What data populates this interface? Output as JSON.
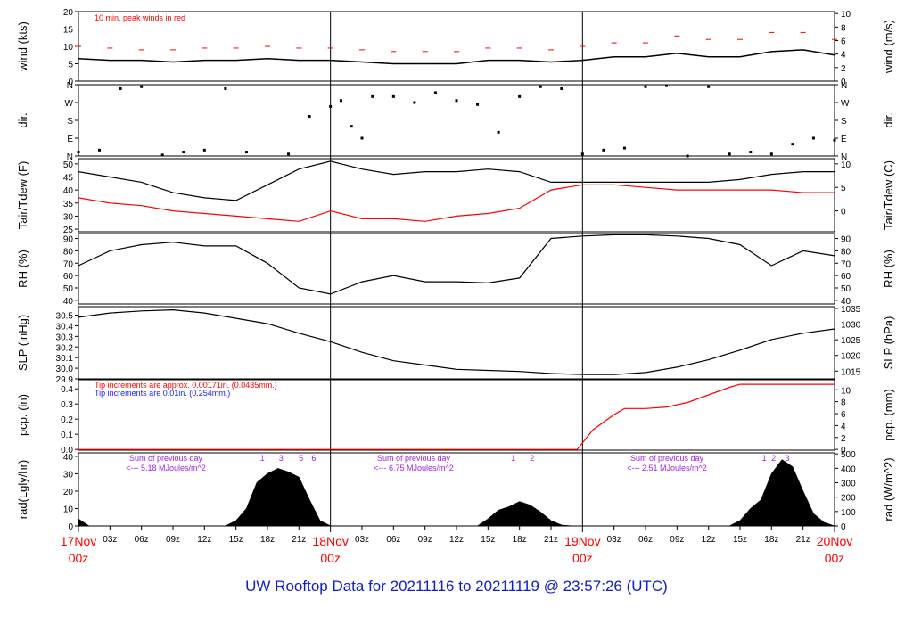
{
  "footer": {
    "title": "UW Rooftop Data for 20211116  to  20211119 @ 23:57:26  (UTC)"
  },
  "colors": {
    "wind_peak": "#ff0000",
    "tdew": "#ff0000",
    "precip": "#ff0000",
    "blue_note": "#1a1aff",
    "summary": "#a020f0",
    "day_label": "#ff0000",
    "title": "#1020c8"
  },
  "chart_data": [
    {
      "type": "line",
      "panel": "wind",
      "ylabel_left": "wind (kts)",
      "ylabel_right": "wind (m/s)",
      "left_ticks": [
        "0",
        "5",
        "10",
        "15",
        "20"
      ],
      "right_ticks": [
        "0",
        "2",
        "4",
        "6",
        "8",
        "10"
      ],
      "ylim": [
        0,
        20
      ],
      "annotation": "10 min. peak winds in red",
      "series": [
        {
          "x": [
            0,
            3,
            6,
            9,
            12,
            15,
            18,
            21,
            24,
            27,
            30,
            33,
            36,
            39,
            42,
            45,
            48,
            51,
            54,
            57,
            60,
            63,
            66,
            69,
            72
          ],
          "values": [
            6.5,
            6,
            6,
            5.5,
            6,
            6,
            6.5,
            6,
            6,
            5.5,
            5,
            5,
            5,
            6,
            6,
            5.5,
            6,
            7,
            7,
            8,
            7,
            7,
            8.5,
            9,
            7.5
          ]
        },
        {
          "x": [
            0,
            3,
            6,
            9,
            12,
            15,
            18,
            21,
            24,
            27,
            30,
            33,
            36,
            39,
            42,
            45,
            48,
            51,
            54,
            57,
            60,
            63,
            66,
            69,
            72
          ],
          "values": [
            10,
            9.5,
            9,
            9,
            9.5,
            9.5,
            10,
            9.5,
            9.5,
            9,
            8.5,
            8.5,
            8.5,
            9.5,
            9.5,
            9,
            10,
            11,
            11,
            13,
            12,
            12,
            14,
            14,
            12
          ]
        }
      ]
    },
    {
      "type": "scatter",
      "panel": "dir",
      "ylabel": "dir.",
      "ticks": [
        "N",
        "E",
        "S",
        "W",
        "N"
      ],
      "x": [
        0,
        2,
        4,
        6,
        8,
        10,
        12,
        14,
        16,
        20,
        22,
        24,
        25,
        26,
        27,
        28,
        30,
        32,
        34,
        36,
        38,
        40,
        42,
        44,
        46,
        48,
        50,
        52,
        54,
        56,
        58,
        60,
        62,
        64,
        66,
        68,
        70,
        72
      ],
      "values": [
        20,
        30,
        340,
        350,
        5,
        20,
        30,
        340,
        20,
        10,
        200,
        250,
        280,
        150,
        90,
        300,
        300,
        270,
        320,
        280,
        260,
        120,
        300,
        350,
        340,
        10,
        30,
        40,
        350,
        355,
        0,
        350,
        10,
        20,
        10,
        60,
        90,
        80
      ]
    },
    {
      "type": "line",
      "panel": "temp",
      "ylabel_left": "Tair/Tdew (F)",
      "ylabel_right": "Tair/Tdew (C)",
      "left_ticks": [
        "25",
        "30",
        "35",
        "40",
        "45",
        "50"
      ],
      "right_ticks": [
        "0",
        "5",
        "10"
      ],
      "ylim": [
        24,
        52
      ],
      "series": [
        {
          "x": [
            0,
            3,
            6,
            9,
            12,
            15,
            18,
            21,
            24,
            27,
            30,
            33,
            36,
            39,
            42,
            45,
            48,
            51,
            54,
            57,
            60,
            63,
            66,
            69,
            72
          ],
          "values": [
            47,
            45,
            43,
            39,
            37,
            36,
            42,
            48,
            51,
            48,
            46,
            47,
            47,
            48,
            47,
            43,
            43,
            43,
            43,
            43,
            43,
            44,
            46,
            47,
            47
          ]
        },
        {
          "x": [
            0,
            3,
            6,
            9,
            12,
            15,
            18,
            21,
            24,
            27,
            30,
            33,
            36,
            39,
            42,
            45,
            48,
            51,
            54,
            57,
            60,
            63,
            66,
            69,
            72
          ],
          "values": [
            37,
            35,
            34,
            32,
            31,
            30,
            29,
            28,
            32,
            29,
            29,
            28,
            30,
            31,
            33,
            40,
            42,
            42,
            41,
            40,
            40,
            40,
            40,
            39,
            39
          ]
        }
      ]
    },
    {
      "type": "line",
      "panel": "rh",
      "ylabel": "RH (%)",
      "ticks": [
        "40",
        "50",
        "60",
        "70",
        "80",
        "90"
      ],
      "ylim": [
        37,
        94
      ],
      "series": [
        {
          "x": [
            0,
            3,
            6,
            9,
            12,
            15,
            18,
            21,
            24,
            27,
            30,
            33,
            36,
            39,
            42,
            45,
            48,
            51,
            54,
            57,
            60,
            63,
            66,
            69,
            72
          ],
          "values": [
            68,
            80,
            85,
            87,
            84,
            84,
            70,
            50,
            45,
            55,
            60,
            55,
            55,
            54,
            58,
            90,
            92,
            93,
            93,
            92,
            90,
            85,
            68,
            80,
            76
          ]
        }
      ]
    },
    {
      "type": "line",
      "panel": "slp",
      "ylabel_left": "SLP (inHg)",
      "ylabel_right": "SLP (hPa)",
      "left_ticks": [
        "29.9",
        "30.0",
        "30.1",
        "30.2",
        "30.3",
        "30.4",
        "30.5"
      ],
      "right_ticks": [
        "1015",
        "1020",
        "1025",
        "1030",
        "1035"
      ],
      "ylim": [
        29.9,
        30.58
      ],
      "series": [
        {
          "x": [
            0,
            3,
            6,
            9,
            12,
            15,
            18,
            21,
            24,
            27,
            30,
            33,
            36,
            39,
            42,
            45,
            48,
            51,
            54,
            57,
            60,
            63,
            66,
            69,
            72
          ],
          "values": [
            30.48,
            30.52,
            30.54,
            30.55,
            30.52,
            30.47,
            30.42,
            30.33,
            30.25,
            30.15,
            30.07,
            30.03,
            29.99,
            29.98,
            29.97,
            29.95,
            29.94,
            29.94,
            29.96,
            30.01,
            30.08,
            30.17,
            30.27,
            30.33,
            30.37
          ]
        }
      ]
    },
    {
      "type": "line",
      "panel": "pcp",
      "ylabel_left": "pcp. (in)",
      "ylabel_right": "pcp. (mm)",
      "left_ticks": [
        "0.0",
        "0.1",
        "0.2",
        "0.3",
        "0.4"
      ],
      "right_ticks": [
        "0",
        "2",
        "4",
        "6",
        "8",
        "10"
      ],
      "ylim": [
        -0.005,
        0.46
      ],
      "notes": [
        "Tip increments are approx. 0.00171in. (0.0435mm.)",
        "Tip increments are 0.01in. (0.254mm.)"
      ],
      "series": [
        {
          "x": [
            0,
            47.5,
            49,
            51,
            52,
            54,
            56,
            58,
            60,
            62,
            63,
            64,
            72
          ],
          "values": [
            0,
            0,
            0.13,
            0.23,
            0.27,
            0.27,
            0.28,
            0.31,
            0.36,
            0.41,
            0.43,
            0.43,
            0.43
          ]
        }
      ]
    },
    {
      "type": "area",
      "panel": "rad",
      "ylabel_left": "rad(Lgly/hr)",
      "ylabel_right": "rad (W/m^2)",
      "left_ticks": [
        "0",
        "10",
        "20",
        "30",
        "40"
      ],
      "right_ticks": [
        "0",
        "100",
        "200",
        "300",
        "400",
        "500"
      ],
      "ylim": [
        0,
        42
      ],
      "summaries": [
        {
          "line1": "Sum of previous day",
          "line2": "<--- 5.18 MJoules/m^2"
        },
        {
          "line1": "Sum of previous day",
          "line2": "<--- 6.75 MJoules/m^2"
        },
        {
          "line1": "Sum of previous day",
          "line2": "<--- 2.51 MJoules/m^2"
        }
      ],
      "markers": [
        "1",
        "3",
        "5",
        "6",
        "1",
        "2",
        "1",
        "2",
        "3"
      ],
      "series": [
        {
          "x": [
            0,
            0.5,
            1,
            14,
            15,
            16,
            17,
            18,
            19,
            20,
            21,
            22,
            23,
            24,
            38,
            39,
            40,
            41,
            42,
            43,
            44,
            45,
            46,
            47,
            62,
            63,
            64,
            65,
            66,
            67,
            68,
            69,
            70,
            71,
            72
          ],
          "values": [
            4,
            2,
            0,
            0,
            3,
            10,
            25,
            30,
            33,
            31,
            28,
            15,
            3,
            0,
            0,
            4,
            9,
            11,
            14,
            12,
            8,
            3,
            0.5,
            0,
            0,
            3,
            10,
            15,
            30,
            38,
            34,
            20,
            7,
            2,
            0
          ]
        }
      ]
    }
  ],
  "xaxis": {
    "hour_ticks": [
      "03z",
      "06z",
      "09z",
      "12z",
      "15z",
      "18z",
      "21z",
      "03z",
      "06z",
      "09z",
      "12z",
      "15z",
      "18z",
      "21z",
      "03z",
      "06z",
      "09z",
      "12z",
      "15z",
      "18z",
      "21z"
    ],
    "day_labels": [
      {
        "day": "17Nov",
        "hour": "00z"
      },
      {
        "day": "18Nov",
        "hour": "00z"
      },
      {
        "day": "19Nov",
        "hour": "00z"
      },
      {
        "day": "20Nov",
        "hour": "00z"
      }
    ]
  }
}
